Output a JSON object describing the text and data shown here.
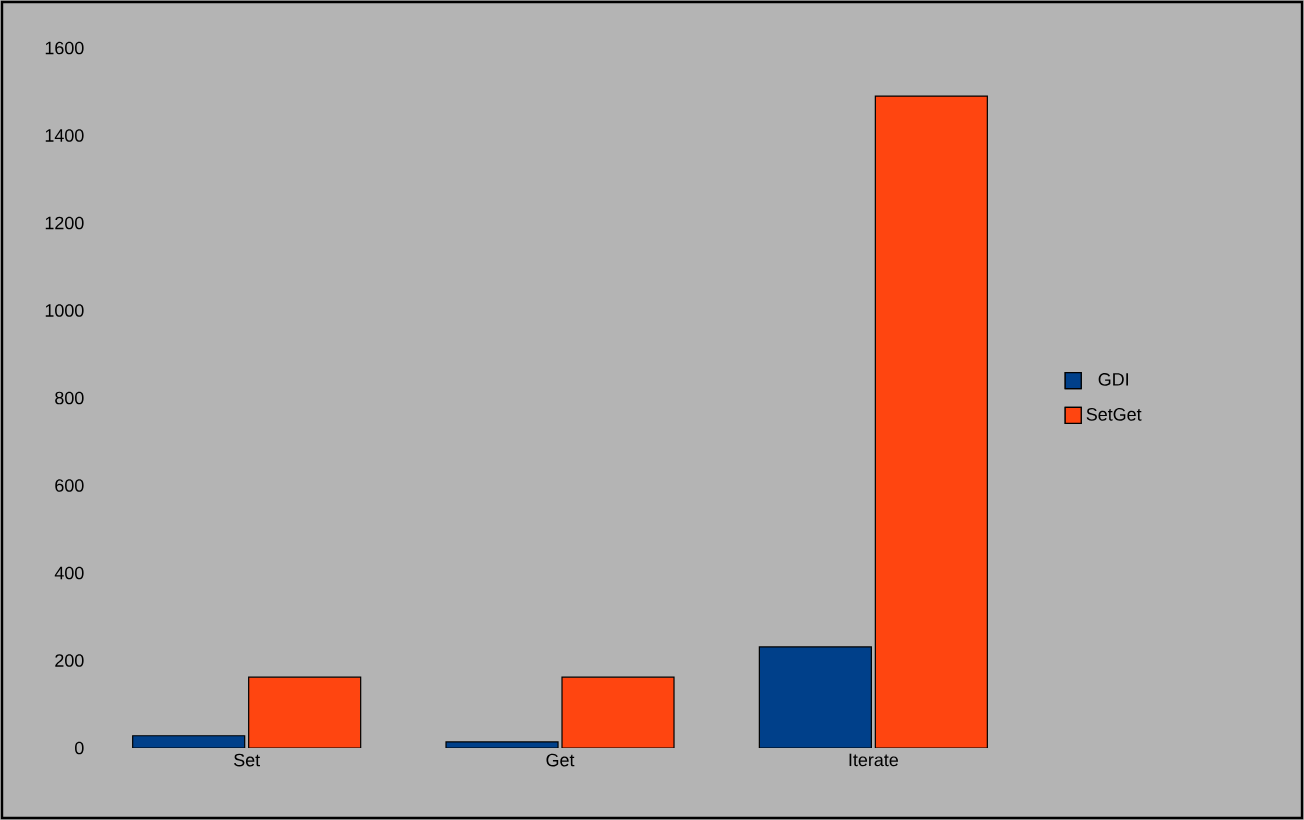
{
  "chart_data": {
    "type": "bar",
    "categories": [
      "Set",
      "Get",
      "Iterate"
    ],
    "series": [
      {
        "name": "GDI",
        "color": "#00408a",
        "values": [
          28,
          14,
          231
        ]
      },
      {
        "name": "SetGet",
        "color": "#ff4510",
        "values": [
          162,
          162,
          1490
        ]
      }
    ],
    "ylim": [
      0,
      1600
    ],
    "yticks": [
      0,
      200,
      400,
      600,
      800,
      1000,
      1200,
      1400,
      1600
    ],
    "legend": "right",
    "grid": false
  }
}
